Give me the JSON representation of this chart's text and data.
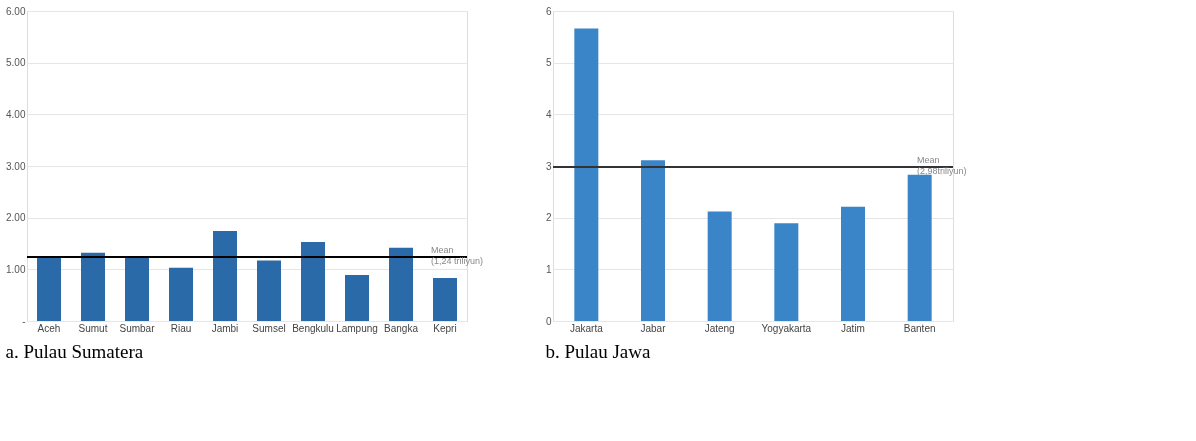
{
  "chart_data": [
    {
      "type": "bar",
      "title": "a.        Pulau Sumatera",
      "categories": [
        "Aceh",
        "Sumut",
        "Sumbar",
        "Riau",
        "Jambi",
        "Sumsel",
        "Bengkulu",
        "Lampung",
        "Bangka",
        "Kepri"
      ],
      "series": [
        {
          "color": "#2a6aa8",
          "values": [
            1.25,
            1.32,
            1.25,
            1.03,
            1.74,
            1.17,
            1.53,
            0.89,
            1.42,
            0.83
          ]
        }
      ],
      "ylim": [
        0,
        6
      ],
      "yticks": [
        {
          "value": 0,
          "label": "-"
        },
        {
          "value": 1,
          "label": "1.00"
        },
        {
          "value": 2,
          "label": "2.00"
        },
        {
          "value": 3,
          "label": "3.00"
        },
        {
          "value": 4,
          "label": "4.00"
        },
        {
          "value": 5,
          "label": "5.00"
        },
        {
          "value": 6,
          "label": "6.00"
        }
      ],
      "grid": "y",
      "ref_lines": [
        {
          "axis": "y",
          "value": 1.24,
          "label": "Mean\n(1,24 triliyun)",
          "color": "#000000"
        }
      ]
    },
    {
      "type": "bar",
      "title": "b.        Pulau Jawa",
      "categories": [
        "Jakarta",
        "Jabar",
        "Jateng",
        "Yogyakarta",
        "Jatim",
        "Banten"
      ],
      "series": [
        {
          "color": "#3a85c8",
          "values": [
            5.66,
            3.11,
            2.12,
            1.89,
            2.21,
            2.83
          ]
        }
      ],
      "ylim": [
        0,
        6
      ],
      "yticks": [
        0,
        1,
        2,
        3,
        4,
        5,
        6
      ],
      "grid": "y",
      "ref_lines": [
        {
          "axis": "y",
          "value": 2.98,
          "label": "Mean\n(2,98triliyun)",
          "color": "#333333"
        }
      ]
    }
  ]
}
